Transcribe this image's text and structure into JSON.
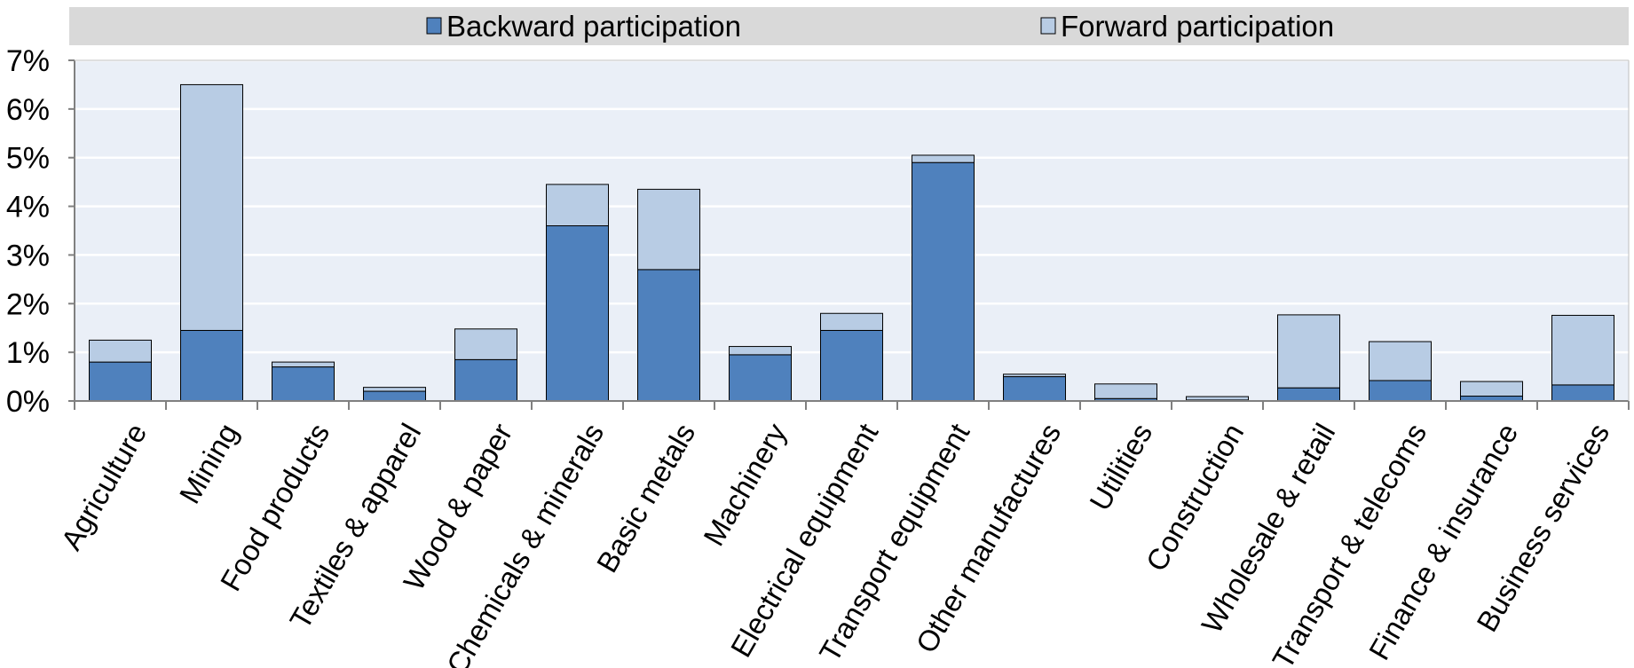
{
  "chart_data": {
    "type": "bar",
    "stacked": true,
    "categories": [
      "Agriculture",
      "Mining",
      "Food products",
      "Textiles & apparel",
      "Wood & paper",
      "Chemicals & minerals",
      "Basic metals",
      "Machinery",
      "Electrical equipment",
      "Transport equipment",
      "Other manufactures",
      "Utilities",
      "Construction",
      "Wholesale & retail",
      "Transport & telecoms",
      "Finance & insurance",
      "Business services"
    ],
    "series": [
      {
        "name": "Backward participation",
        "color": "#4f81bd",
        "values": [
          0.8,
          1.45,
          0.7,
          0.2,
          0.85,
          3.6,
          2.7,
          0.95,
          1.45,
          4.9,
          0.5,
          0.05,
          0.02,
          0.27,
          0.42,
          0.1,
          0.33
        ]
      },
      {
        "name": "Forward participation",
        "color": "#b8cce4",
        "values": [
          0.45,
          5.05,
          0.1,
          0.08,
          0.63,
          0.85,
          1.65,
          0.17,
          0.35,
          0.15,
          0.05,
          0.3,
          0.07,
          1.5,
          0.8,
          0.3,
          1.43
        ]
      }
    ],
    "y_tick_labels": [
      "0%",
      "1%",
      "2%",
      "3%",
      "4%",
      "5%",
      "6%",
      "7%"
    ],
    "ylim": [
      0,
      7
    ],
    "y_unit": "%",
    "grid": true,
    "legend_position": "top",
    "plot_background": "#eaeff7",
    "legend_background": "#d9d9d9",
    "axis_color": "#808080"
  }
}
